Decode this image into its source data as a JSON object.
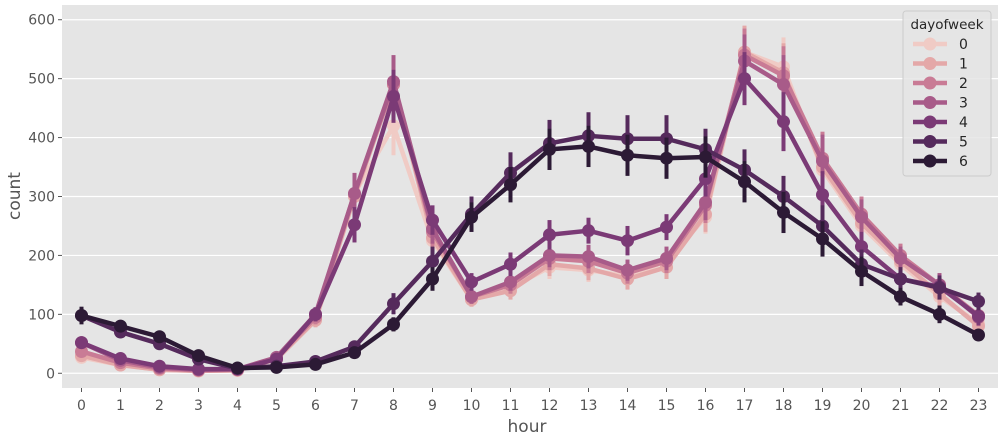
{
  "chart_data": {
    "type": "line",
    "xlabel": "hour",
    "ylabel": "count",
    "x": [
      0,
      1,
      2,
      3,
      4,
      5,
      6,
      7,
      8,
      9,
      10,
      11,
      12,
      13,
      14,
      15,
      16,
      17,
      18,
      19,
      20,
      21,
      22,
      23
    ],
    "xlim": [
      -0.5,
      23.5
    ],
    "ylim": [
      -25,
      625
    ],
    "yticks": [
      0,
      100,
      200,
      300,
      400,
      500,
      600
    ],
    "grid": true,
    "legend": {
      "title": "dayofweek",
      "position": "top-right"
    },
    "series": [
      {
        "name": "0",
        "color": "#f0cbc5",
        "values": [
          27,
          14,
          6,
          4,
          5,
          24,
          95,
          305,
          420,
          225,
          125,
          145,
          180,
          175,
          165,
          190,
          265,
          545,
          520,
          345,
          250,
          185,
          130,
          85
        ],
        "err": [
          8,
          5,
          4,
          3,
          3,
          6,
          12,
          30,
          50,
          25,
          12,
          15,
          20,
          20,
          18,
          20,
          28,
          40,
          50,
          45,
          30,
          20,
          20,
          15
        ]
      },
      {
        "name": "1",
        "color": "#e4a8a8",
        "values": [
          30,
          14,
          6,
          4,
          5,
          24,
          90,
          300,
          490,
          230,
          125,
          140,
          185,
          178,
          160,
          180,
          270,
          545,
          510,
          350,
          255,
          190,
          135,
          80
        ],
        "err": [
          8,
          5,
          4,
          3,
          3,
          6,
          12,
          35,
          45,
          25,
          12,
          15,
          20,
          20,
          18,
          20,
          30,
          45,
          50,
          45,
          30,
          20,
          20,
          15
        ]
      },
      {
        "name": "2",
        "color": "#c97b95",
        "values": [
          37,
          18,
          8,
          5,
          6,
          26,
          95,
          305,
          490,
          240,
          130,
          150,
          195,
          190,
          170,
          190,
          285,
          540,
          505,
          365,
          270,
          200,
          150,
          98
        ],
        "err": [
          8,
          5,
          4,
          3,
          3,
          6,
          12,
          35,
          45,
          25,
          12,
          15,
          20,
          20,
          18,
          20,
          30,
          45,
          50,
          45,
          30,
          20,
          20,
          15
        ]
      },
      {
        "name": "3",
        "color": "#a85b89",
        "values": [
          52,
          22,
          10,
          6,
          7,
          27,
          100,
          305,
          495,
          245,
          130,
          155,
          200,
          198,
          175,
          195,
          290,
          530,
          490,
          360,
          265,
          195,
          150,
          95
        ],
        "err": [
          8,
          5,
          4,
          3,
          3,
          6,
          12,
          35,
          45,
          25,
          12,
          15,
          20,
          20,
          18,
          20,
          30,
          45,
          50,
          45,
          30,
          20,
          20,
          15
        ]
      },
      {
        "name": "4",
        "color": "#7b3a76",
        "values": [
          52,
          25,
          12,
          7,
          7,
          24,
          100,
          252,
          470,
          260,
          155,
          185,
          235,
          242,
          225,
          248,
          330,
          500,
          427,
          303,
          215,
          160,
          147,
          97
        ],
        "err": [
          8,
          5,
          4,
          3,
          3,
          6,
          12,
          30,
          45,
          25,
          15,
          20,
          25,
          22,
          25,
          22,
          30,
          45,
          50,
          40,
          25,
          20,
          20,
          15
        ]
      },
      {
        "name": "5",
        "color": "#552a5c",
        "values": [
          98,
          70,
          50,
          24,
          8,
          12,
          20,
          45,
          118,
          190,
          270,
          340,
          390,
          403,
          398,
          398,
          380,
          345,
          300,
          250,
          185,
          160,
          145,
          122
        ],
        "err": [
          12,
          8,
          6,
          5,
          3,
          3,
          5,
          10,
          18,
          25,
          30,
          35,
          40,
          40,
          40,
          40,
          35,
          35,
          35,
          35,
          25,
          20,
          20,
          15
        ]
      },
      {
        "name": "6",
        "color": "#2c1a35",
        "values": [
          98,
          80,
          62,
          30,
          9,
          10,
          15,
          35,
          83,
          160,
          265,
          320,
          380,
          385,
          370,
          365,
          367,
          325,
          273,
          228,
          173,
          130,
          100,
          65
        ],
        "err": [
          15,
          10,
          8,
          6,
          3,
          3,
          5,
          8,
          12,
          20,
          25,
          30,
          35,
          35,
          35,
          35,
          35,
          35,
          35,
          30,
          25,
          15,
          15,
          10
        ]
      }
    ]
  }
}
